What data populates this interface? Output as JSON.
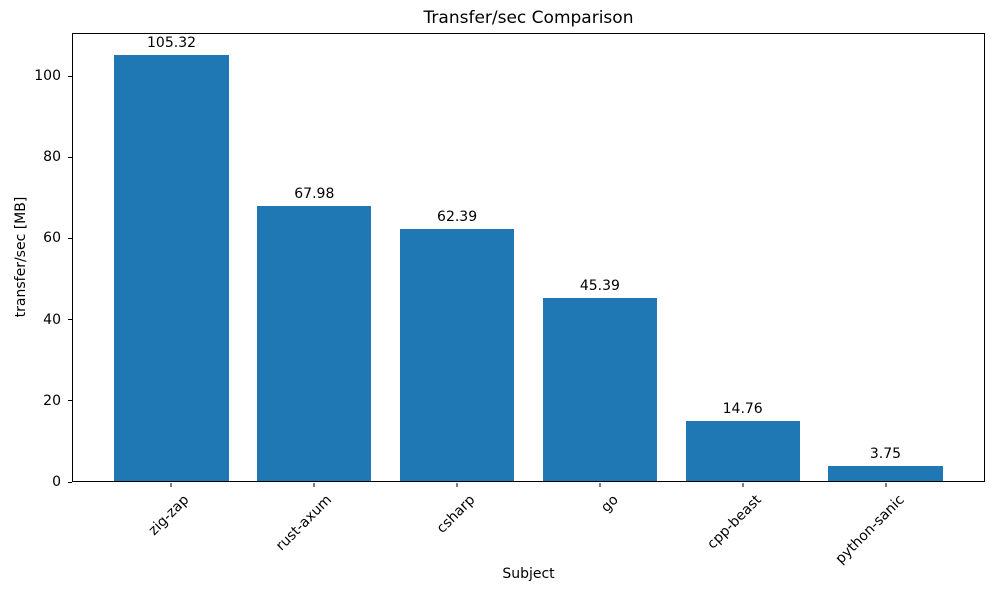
{
  "chart_data": {
    "type": "bar",
    "title": "Transfer/sec Comparison",
    "xlabel": "Subject",
    "ylabel": "transfer/sec [MB]",
    "categories": [
      "zig-zap",
      "rust-axum",
      "csharp",
      "go",
      "cpp-beast",
      "python-sanic"
    ],
    "values": [
      105.32,
      67.98,
      62.39,
      45.39,
      14.76,
      3.75
    ],
    "bar_labels": [
      "105.32",
      "67.98",
      "62.39",
      "45.39",
      "14.76",
      "3.75"
    ],
    "yticks": [
      0,
      20,
      40,
      60,
      80,
      100
    ],
    "ytick_labels": [
      "0",
      "20",
      "40",
      "60",
      "80",
      "100"
    ],
    "ylim": [
      0,
      110.6
    ],
    "xlim": [
      -0.69,
      5.69
    ],
    "bar_width": 0.8,
    "bar_color": "#1f77b4",
    "grid": false,
    "legend_position": "none"
  }
}
